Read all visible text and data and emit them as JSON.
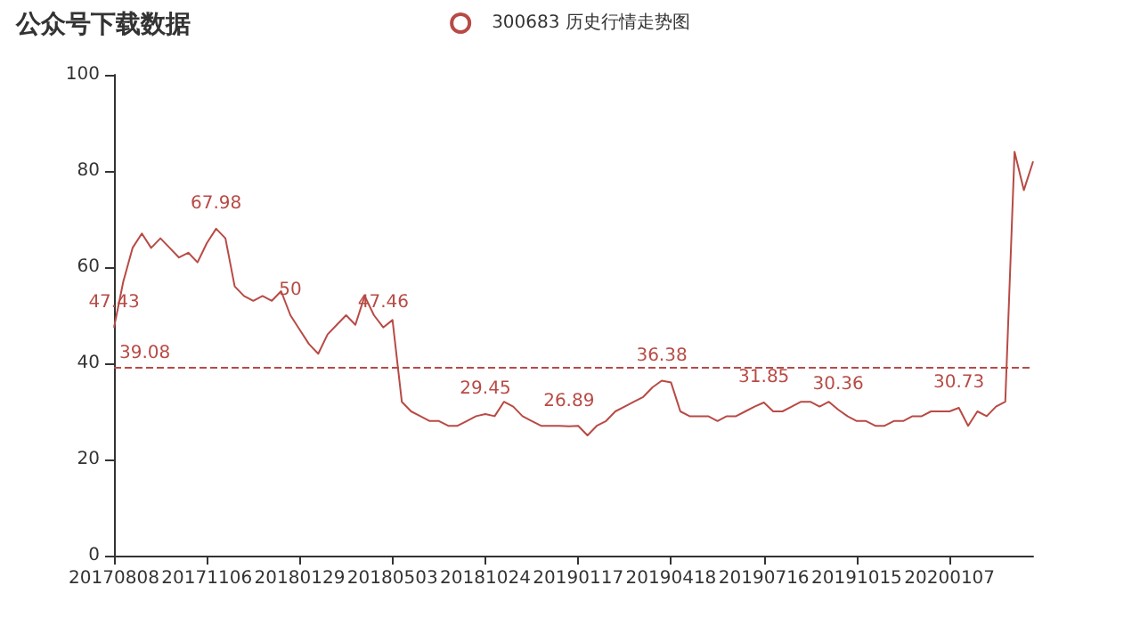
{
  "chart_data": {
    "type": "line",
    "title": "公众号下载数据",
    "legend": "top",
    "categories": [
      "20170808",
      null,
      null,
      null,
      null,
      null,
      null,
      null,
      null,
      null,
      "20171106",
      null,
      null,
      null,
      null,
      null,
      null,
      null,
      null,
      null,
      "20180129",
      null,
      null,
      null,
      null,
      null,
      null,
      null,
      null,
      null,
      "20180503",
      null,
      null,
      null,
      null,
      null,
      null,
      null,
      null,
      null,
      "20181024",
      null,
      null,
      null,
      null,
      null,
      null,
      null,
      null,
      null,
      "20190117",
      null,
      null,
      null,
      null,
      null,
      null,
      null,
      null,
      null,
      "20190418",
      null,
      null,
      null,
      null,
      null,
      null,
      null,
      null,
      null,
      "20190716",
      null,
      null,
      null,
      null,
      null,
      null,
      null,
      null,
      null,
      "20191015",
      null,
      null,
      null,
      null,
      null,
      null,
      null,
      null,
      null,
      "20200107",
      null,
      null,
      null,
      null,
      null,
      null,
      null,
      null,
      null
    ],
    "series": [
      {
        "name": "300683 历史行情走势图",
        "color": "#b84a45",
        "values": [
          47.43,
          57,
          64,
          67,
          64,
          66,
          64,
          62,
          63,
          61,
          65,
          67.98,
          66,
          56,
          54,
          53,
          54,
          53,
          55,
          50,
          47,
          44,
          42,
          46,
          48,
          50,
          48,
          54,
          50,
          47.46,
          49,
          32,
          30,
          29,
          28,
          28,
          27,
          27,
          28,
          29,
          29.45,
          29,
          32,
          31,
          29,
          28,
          27,
          27,
          27,
          26.89,
          27,
          25,
          27,
          28,
          30,
          31,
          32,
          33,
          35,
          36.38,
          36,
          30,
          29,
          29,
          29,
          28,
          29,
          29,
          30,
          31,
          31.85,
          30,
          30,
          31,
          32,
          32,
          31,
          32,
          30.36,
          29,
          28,
          28,
          27,
          27,
          28,
          28,
          29,
          29,
          30,
          30,
          30,
          30.73,
          27,
          30,
          29,
          31,
          32,
          84,
          76,
          82
        ],
        "value_labels": [
          "47.43",
          null,
          null,
          null,
          null,
          null,
          null,
          null,
          null,
          null,
          null,
          "67.98",
          null,
          null,
          null,
          null,
          null,
          null,
          null,
          "50",
          null,
          null,
          null,
          null,
          null,
          null,
          null,
          null,
          null,
          "47.46",
          null,
          null,
          null,
          null,
          null,
          null,
          null,
          null,
          null,
          null,
          "29.45",
          null,
          null,
          null,
          null,
          null,
          null,
          null,
          null,
          "26.89",
          null,
          null,
          null,
          null,
          null,
          null,
          null,
          null,
          null,
          "36.38",
          null,
          null,
          null,
          null,
          null,
          null,
          null,
          null,
          null,
          null,
          "31.85",
          null,
          null,
          null,
          null,
          null,
          null,
          null,
          "30.36",
          null,
          null,
          null,
          null,
          null,
          null,
          null,
          null,
          null,
          null,
          null,
          null,
          "30.73",
          null,
          null,
          null,
          null,
          null,
          null,
          null,
          null
        ]
      }
    ],
    "ylim": [
      0,
      100
    ],
    "yticks": [
      0,
      20,
      40,
      60,
      80,
      100
    ],
    "grid": false,
    "ref_lines": [
      {
        "axis": "y",
        "value": 39.08,
        "label": "39.08",
        "color": "#b84a45",
        "line_style": "dashed"
      }
    ]
  }
}
